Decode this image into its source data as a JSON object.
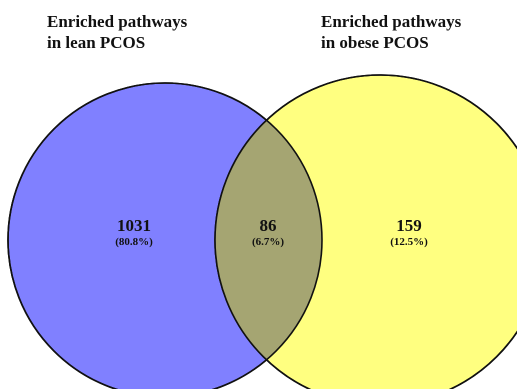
{
  "sets": {
    "left": {
      "title_line1": "Enriched pathways",
      "title_line2": "in lean PCOS",
      "count": "1031",
      "percent": "(80.8%)",
      "fill": "#8080ff"
    },
    "right": {
      "title_line1": "Enriched pathways",
      "title_line2": "in obese PCOS",
      "count": "159",
      "percent": "(12.5%)",
      "fill": "#ffff80"
    },
    "overlap": {
      "count": "86",
      "percent": "(6.7%)",
      "fill": "#a5a572"
    }
  },
  "style": {
    "outline": "#111111",
    "text": "#111111"
  }
}
